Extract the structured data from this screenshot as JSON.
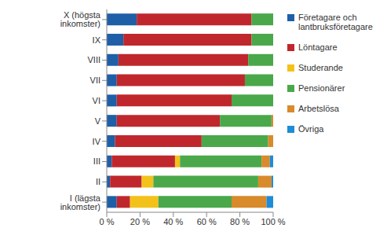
{
  "chart_data": {
    "type": "bar",
    "orientation": "horizontal",
    "stacked": true,
    "legend": "right",
    "grid": false,
    "categories": [
      "X (högsta inkomster)",
      "IX",
      "VIII",
      "VII",
      "VI",
      "V",
      "IV",
      "III",
      "II",
      "I (lägsta inkomster)"
    ],
    "series": [
      {
        "name": "Företagare och lantbruksföretagare",
        "color": "#1f5fa8",
        "values": [
          18,
          10,
          7,
          6,
          6,
          6,
          5,
          3,
          2,
          6
        ]
      },
      {
        "name": "Löntagare",
        "color": "#c0272d",
        "values": [
          69,
          77,
          78,
          77,
          69,
          62,
          52,
          38,
          19,
          8
        ]
      },
      {
        "name": "Studerande",
        "color": "#f2c21b",
        "values": [
          0,
          0,
          0,
          0,
          0,
          0,
          0,
          3,
          7,
          17
        ]
      },
      {
        "name": "Pensionärer",
        "color": "#4aa84a",
        "values": [
          13,
          13,
          15,
          17,
          25,
          31,
          40,
          49,
          63,
          44
        ]
      },
      {
        "name": "Arbetslösa",
        "color": "#d98a2b",
        "values": [
          0,
          0,
          0,
          0,
          0,
          1,
          3,
          5,
          8,
          21
        ]
      },
      {
        "name": "Övriga",
        "color": "#1e8cd6",
        "values": [
          0,
          0,
          0,
          0,
          0,
          0,
          0,
          2,
          1,
          4
        ]
      }
    ],
    "xlim": [
      0,
      100
    ],
    "xticks": [
      {
        "value": 0,
        "label": "0 %"
      },
      {
        "value": 20,
        "label": "20 %"
      },
      {
        "value": 40,
        "label": "40 %"
      },
      {
        "value": 60,
        "label": "60 %"
      },
      {
        "value": 80,
        "label": "80 %"
      },
      {
        "value": 100,
        "label": "100 %"
      }
    ]
  }
}
